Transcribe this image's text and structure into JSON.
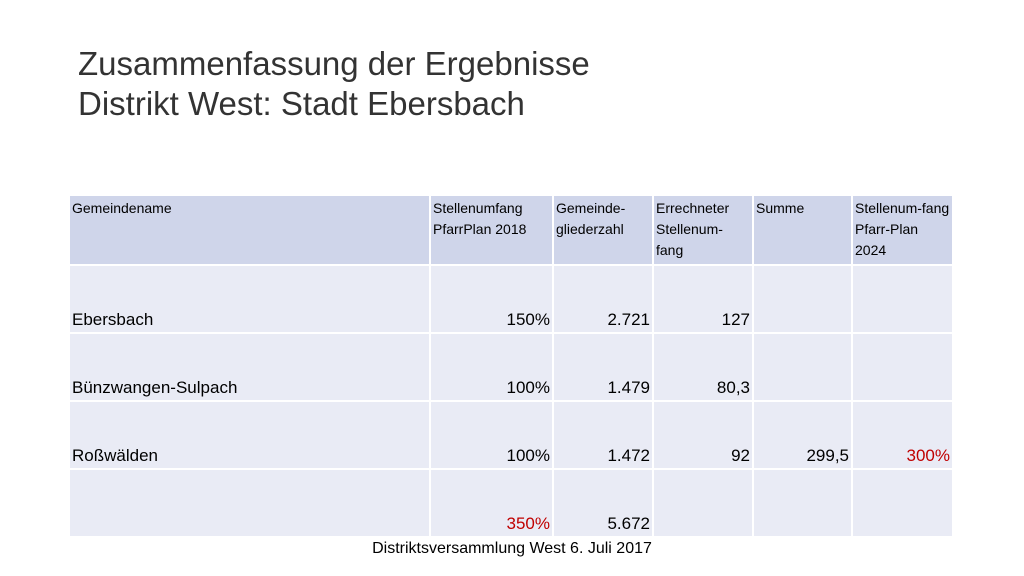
{
  "title": {
    "line1": "Zusammenfassung der Ergebnisse",
    "line2": "Distrikt West: Stadt Ebersbach"
  },
  "table": {
    "headers": [
      "Gemeindename",
      "Stellenumfang PfarrPlan 2018",
      "Gemeinde-gliederzahl",
      "Errechneter Stellenum-fang",
      "Summe",
      "Stellenum-fang Pfarr-Plan 2024"
    ],
    "rows": [
      [
        "Ebersbach",
        "150%",
        "2.721",
        "127",
        "",
        ""
      ],
      [
        "Bünzwangen-Sulpach",
        "100%",
        "1.479",
        "80,3",
        "",
        ""
      ],
      [
        "Roßwälden",
        "100%",
        "1.472",
        "92",
        "299,5",
        "300%"
      ],
      [
        "",
        "350%",
        "5.672",
        "",
        "",
        ""
      ]
    ]
  },
  "colors": {
    "highlight": "#c00000",
    "header_bg": "#cfd5ea",
    "cell_bg": "#e9ebf5"
  },
  "footer": "Distriktsversammlung West 6. Juli 2017"
}
